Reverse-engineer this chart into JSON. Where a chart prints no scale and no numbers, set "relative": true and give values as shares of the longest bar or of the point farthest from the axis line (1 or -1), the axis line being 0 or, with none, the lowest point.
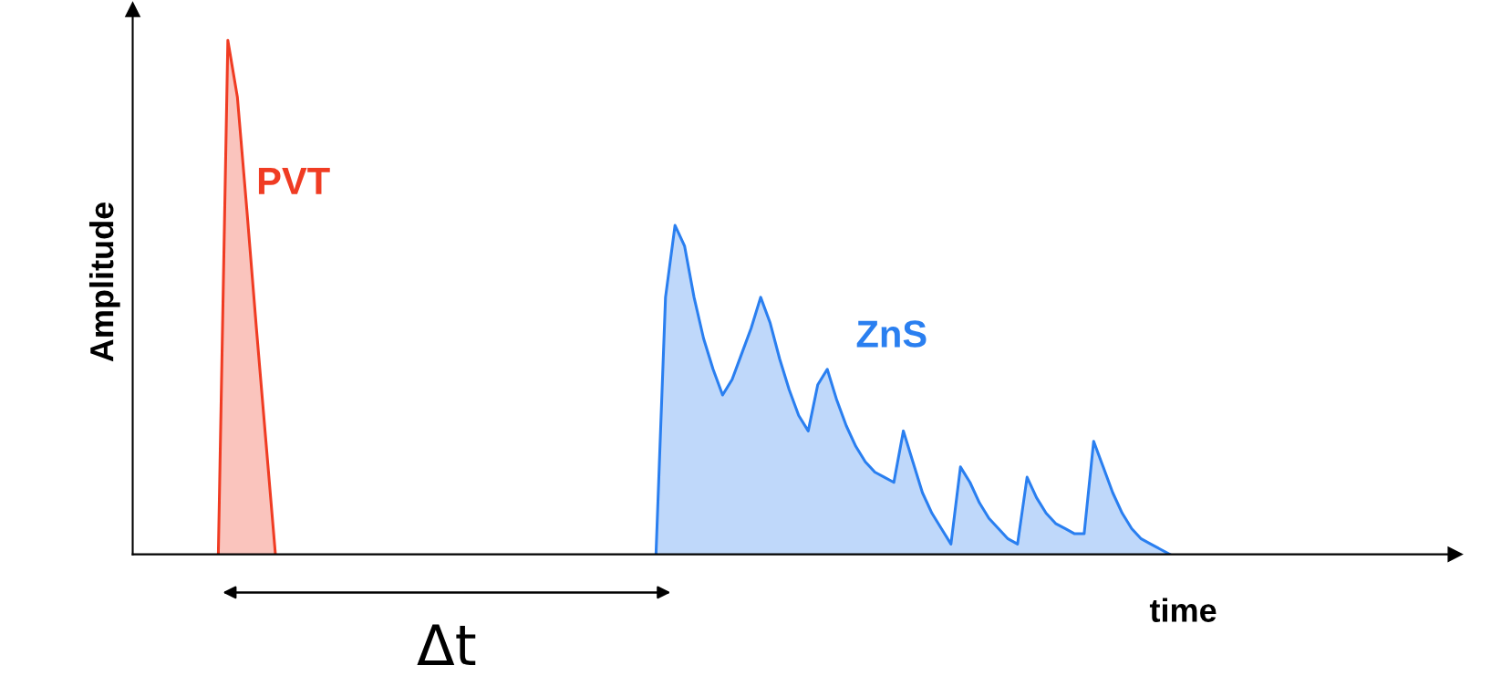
{
  "chart_data": {
    "type": "area",
    "relative": true,
    "xlabel": "time",
    "ylabel": "Amplitude",
    "annotations": [
      "Δt"
    ],
    "categories": [
      null,
      null,
      null,
      null,
      null,
      null,
      null,
      null,
      null,
      null,
      null,
      null,
      null,
      null,
      null,
      null,
      null,
      null,
      null,
      null,
      null,
      null,
      null,
      null,
      null,
      null,
      null,
      null,
      null,
      null,
      null,
      null,
      null,
      null,
      null,
      null,
      null,
      null,
      null,
      null,
      null,
      null,
      null,
      null,
      null,
      null,
      null,
      null,
      null,
      null,
      null,
      null,
      null,
      null,
      null,
      null,
      null,
      null,
      null,
      null,
      null,
      null,
      null,
      null,
      null,
      null,
      null,
      null,
      null,
      null,
      null,
      null,
      null,
      null,
      null,
      null,
      null,
      null,
      null,
      null,
      null,
      null,
      null,
      null,
      null,
      null,
      null,
      null,
      null,
      null,
      null,
      null,
      null,
      null,
      null,
      null,
      null,
      null,
      null,
      null,
      null,
      null,
      null,
      null,
      null,
      null,
      null,
      null,
      null,
      null,
      null,
      null,
      null,
      null,
      null,
      null,
      null,
      null,
      null,
      null,
      null,
      null,
      null,
      null,
      null,
      null,
      null,
      null,
      null,
      null,
      null,
      null,
      null,
      null,
      null,
      null,
      null,
      null,
      null,
      null
    ],
    "series": [
      {
        "name": "PVT",
        "color": "#f03c23",
        "values": [
          null,
          null,
          null,
          null,
          null,
          null,
          null,
          null,
          null,
          0,
          1.0,
          0.89,
          0.67,
          0.44,
          0.22,
          0,
          null,
          null,
          null,
          null,
          null,
          null,
          null,
          null,
          null,
          null,
          null,
          null,
          null,
          null,
          null,
          null,
          null,
          null,
          null,
          null,
          null,
          null,
          null,
          null,
          null,
          null,
          null,
          null,
          null,
          null,
          null,
          null,
          null,
          null,
          null,
          null,
          null,
          null,
          null,
          null,
          null,
          null,
          null,
          null,
          null,
          null,
          null,
          null,
          null,
          null,
          null,
          null,
          null,
          null,
          null,
          null,
          null,
          null,
          null,
          null,
          null,
          null,
          null,
          null,
          null,
          null,
          null,
          null,
          null,
          null,
          null,
          null,
          null,
          null,
          null,
          null,
          null,
          null,
          null,
          null,
          null,
          null,
          null,
          null,
          null,
          null,
          null,
          null,
          null,
          null,
          null,
          null,
          null,
          null,
          null,
          null,
          null,
          null,
          null,
          null,
          null,
          null,
          null,
          null,
          null,
          null,
          null,
          null,
          null,
          null,
          null,
          null,
          null,
          null,
          null,
          null,
          null,
          null,
          null,
          null,
          null,
          null,
          null,
          null
        ]
      },
      {
        "name": "ZnS",
        "color": "#2a7ff0",
        "values": [
          null,
          null,
          null,
          null,
          null,
          null,
          null,
          null,
          null,
          null,
          null,
          null,
          null,
          null,
          null,
          null,
          null,
          null,
          null,
          null,
          null,
          null,
          null,
          null,
          null,
          null,
          null,
          null,
          null,
          null,
          null,
          null,
          null,
          null,
          null,
          null,
          null,
          null,
          null,
          null,
          null,
          null,
          null,
          null,
          null,
          null,
          null,
          null,
          null,
          null,
          null,
          null,
          null,
          null,
          null,
          0,
          0.5,
          0.64,
          0.6,
          0.5,
          0.42,
          0.36,
          0.31,
          0.34,
          0.39,
          0.44,
          0.5,
          0.45,
          0.38,
          0.32,
          0.27,
          0.24,
          0.33,
          0.36,
          0.3,
          0.25,
          0.21,
          0.18,
          0.16,
          0.15,
          0.14,
          0.24,
          0.18,
          0.12,
          0.08,
          0.05,
          0.02,
          0.17,
          0.14,
          0.1,
          0.07,
          0.05,
          0.03,
          0.02,
          0.15,
          0.11,
          0.08,
          0.06,
          0.05,
          0.04,
          0.04,
          0.22,
          0.17,
          0.12,
          0.08,
          0.05,
          0.03,
          0.02,
          0.01,
          0,
          null,
          null,
          null,
          null,
          null,
          null,
          null,
          null,
          null,
          null,
          null,
          null,
          null,
          null,
          null,
          null,
          null,
          null,
          null,
          null,
          null,
          null,
          null,
          null,
          null,
          null,
          null,
          null,
          null,
          null
        ]
      }
    ]
  }
}
